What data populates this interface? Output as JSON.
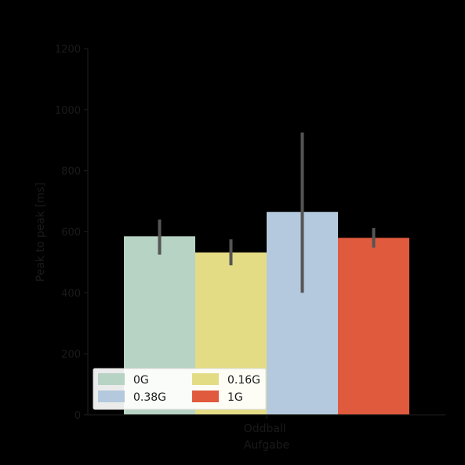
{
  "chart_data": {
    "type": "bar",
    "categories": [
      "Oddball\nAufgabe"
    ],
    "xlabel_lines": [
      "Oddball",
      "Aufgabe"
    ],
    "ylabel": "Peak to peak [ms]",
    "ylim": [
      0,
      1200
    ],
    "yticks": [
      0,
      200,
      400,
      600,
      800,
      1000,
      1200
    ],
    "grid": false,
    "legend_position": "bottom-left",
    "legend_columns": 2,
    "series": [
      {
        "name": "0G",
        "color": "#b7d3c3",
        "value": 585,
        "err_low": 525,
        "err_high": 640
      },
      {
        "name": "0.16G",
        "color": "#e3dc85",
        "value": 532,
        "err_low": 490,
        "err_high": 575
      },
      {
        "name": "0.38G",
        "color": "#b4c9dd",
        "value": 665,
        "err_low": 400,
        "err_high": 925
      },
      {
        "name": "1G",
        "color": "#e05a3e",
        "value": 580,
        "err_low": 548,
        "err_high": 612
      }
    ]
  }
}
